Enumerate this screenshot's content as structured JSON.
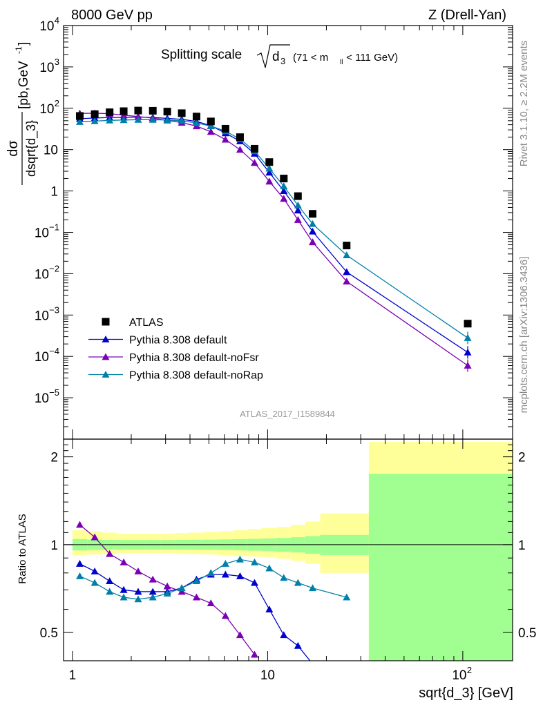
{
  "header": {
    "left": "8000 GeV pp",
    "right": "Z (Drell-Yan)"
  },
  "title": {
    "main": "Splitting scale",
    "sqrt_arg": "d",
    "sqrt_sub": "3",
    "range": "(71 < m",
    "range_sub": "ll",
    "range_end": " < 111 GeV)"
  },
  "ylabel": {
    "numerator": "dσ",
    "denominator": "dsqrt{d_3}",
    "units": "[pb,GeV",
    "units_sup": "-1",
    "units_end": "]"
  },
  "ratio_ylabel": "Ratio to ATLAS",
  "xlabel": "sqrt{d_3} [GeV]",
  "analysis_id": "ATLAS_2017_I1589844",
  "side_text_upper": "Rivet 3.1.10, ≥ 2.2M events",
  "side_text_lower": "mcplots.cern.ch [arXiv:1306.3436]",
  "colors": {
    "atlas": "#000000",
    "default": "#0000cc",
    "noFsr": "#7b00b4",
    "noRap": "#0080a8",
    "band_inner": "#a0ff90",
    "band_outer": "#ffff99"
  },
  "chart_data": {
    "type": "scatter",
    "x_scale": "log",
    "y_scale": "log",
    "xlim": [
      0.9,
      180
    ],
    "ylim": [
      1e-06,
      10000
    ],
    "x_ticks": [
      {
        "value": 1,
        "label": "1"
      },
      {
        "value": 10,
        "label": "10"
      },
      {
        "value": 100,
        "label": "10",
        "sup": "2"
      }
    ],
    "y_ticks": [
      {
        "value": 1e-05,
        "label": "10",
        "sup": "−5"
      },
      {
        "value": 0.0001,
        "label": "10",
        "sup": "−4"
      },
      {
        "value": 0.001,
        "label": "10",
        "sup": "−3"
      },
      {
        "value": 0.01,
        "label": "10",
        "sup": "−2"
      },
      {
        "value": 0.1,
        "label": "10",
        "sup": "−1"
      },
      {
        "value": 1,
        "label": "1",
        "sup": ""
      },
      {
        "value": 10,
        "label": "10",
        "sup": ""
      },
      {
        "value": 100,
        "label": "10",
        "sup": "2"
      },
      {
        "value": 1000,
        "label": "10",
        "sup": "3"
      },
      {
        "value": 10000,
        "label": "10",
        "sup": "4"
      }
    ],
    "legend": {
      "placement": "lower-left",
      "entries": [
        {
          "key": "atlas",
          "label": "ATLAS"
        },
        {
          "key": "default",
          "label": "Pythia 8.308 default"
        },
        {
          "key": "noFsr",
          "label": "Pythia 8.308 default-noFsr"
        },
        {
          "key": "noRap",
          "label": "Pythia 8.308 default-noRap"
        }
      ]
    },
    "atlas": {
      "x": [
        1.09,
        1.3,
        1.55,
        1.83,
        2.17,
        2.58,
        3.06,
        3.63,
        4.32,
        5.12,
        6.08,
        7.22,
        8.57,
        10.2,
        12.1,
        14.3,
        17.0,
        25.4,
        106
      ],
      "y": [
        65,
        72,
        80,
        85,
        88,
        87,
        83,
        76,
        63,
        48,
        32,
        20,
        10.5,
        5.0,
        2.0,
        0.75,
        0.28,
        0.048,
        0.00062
      ]
    },
    "series": [
      {
        "key": "default",
        "x": [
          1.09,
          1.3,
          1.55,
          1.83,
          2.17,
          2.58,
          3.06,
          3.63,
          4.32,
          5.12,
          6.08,
          7.22,
          8.57,
          10.2,
          12.1,
          14.3,
          17.0,
          25.4,
          106
        ],
        "y": [
          56,
          58,
          60,
          60,
          61,
          60,
          57,
          54,
          48,
          38,
          25,
          16,
          8.0,
          2.8,
          1.0,
          0.34,
          0.105,
          0.011,
          0.000125
        ]
      },
      {
        "key": "noFsr",
        "x": [
          1.09,
          1.3,
          1.55,
          1.83,
          2.17,
          2.58,
          3.06,
          3.63,
          4.32,
          5.12,
          6.08,
          7.22,
          8.57,
          10.2,
          12.1,
          14.3,
          17.0,
          25.4,
          106
        ],
        "y": [
          75,
          76,
          74,
          68,
          63,
          58,
          51,
          45,
          37,
          27,
          17.5,
          10,
          4.8,
          1.7,
          0.65,
          0.2,
          0.058,
          0.0065,
          6e-05
        ]
      },
      {
        "key": "noRap",
        "x": [
          1.09,
          1.3,
          1.55,
          1.83,
          2.17,
          2.58,
          3.06,
          3.63,
          4.32,
          5.12,
          6.08,
          7.22,
          8.57,
          10.2,
          12.1,
          14.3,
          17.0,
          25.4,
          106
        ],
        "y": [
          47,
          49,
          51,
          52,
          53,
          53,
          52,
          50,
          44,
          37,
          28,
          18,
          9.2,
          3.5,
          1.3,
          0.45,
          0.16,
          0.028,
          0.00028
        ]
      }
    ],
    "ratio": {
      "ylim": [
        0.4,
        2.3
      ],
      "y_ticks": [
        0.5,
        1,
        2
      ],
      "band_edges": [
        1.0,
        1.19,
        1.42,
        1.68,
        2.0,
        2.37,
        2.82,
        3.34,
        3.97,
        4.71,
        5.59,
        6.64,
        7.88,
        9.35,
        11.1,
        13.2,
        15.6,
        18.6,
        33.0,
        180
      ],
      "band_inner": [
        [
          0.955,
          1.045
        ],
        [
          0.96,
          1.04
        ],
        [
          0.962,
          1.038
        ],
        [
          0.963,
          1.037
        ],
        [
          0.963,
          1.037
        ],
        [
          0.963,
          1.037
        ],
        [
          0.963,
          1.037
        ],
        [
          0.962,
          1.038
        ],
        [
          0.961,
          1.039
        ],
        [
          0.96,
          1.04
        ],
        [
          0.958,
          1.042
        ],
        [
          0.956,
          1.044
        ],
        [
          0.953,
          1.047
        ],
        [
          0.95,
          1.05
        ],
        [
          0.946,
          1.054
        ],
        [
          0.94,
          1.06
        ],
        [
          0.93,
          1.07
        ],
        [
          0.92,
          1.08
        ],
        [
          0.4,
          1.75
        ]
      ],
      "band_outer": [
        [
          0.92,
          1.12
        ],
        [
          0.925,
          1.11
        ],
        [
          0.93,
          1.1
        ],
        [
          0.935,
          1.09
        ],
        [
          0.935,
          1.09
        ],
        [
          0.935,
          1.09
        ],
        [
          0.935,
          1.09
        ],
        [
          0.93,
          1.095
        ],
        [
          0.928,
          1.1
        ],
        [
          0.925,
          1.105
        ],
        [
          0.92,
          1.11
        ],
        [
          0.915,
          1.12
        ],
        [
          0.91,
          1.13
        ],
        [
          0.905,
          1.14
        ],
        [
          0.895,
          1.15
        ],
        [
          0.88,
          1.17
        ],
        [
          0.86,
          1.2
        ],
        [
          0.8,
          1.28
        ],
        [
          0.4,
          2.25
        ]
      ],
      "series": [
        {
          "key": "default",
          "x": [
            1.09,
            1.3,
            1.55,
            1.83,
            2.17,
            2.58,
            3.06,
            3.63,
            4.32,
            5.12,
            6.08,
            7.22,
            8.57,
            10.2,
            12.1,
            14.3,
            17.0
          ],
          "y": [
            0.86,
            0.81,
            0.75,
            0.7,
            0.69,
            0.69,
            0.69,
            0.71,
            0.76,
            0.79,
            0.79,
            0.78,
            0.74,
            0.6,
            0.49,
            0.45,
            0.39
          ]
        },
        {
          "key": "noFsr",
          "x": [
            1.09,
            1.3,
            1.55,
            1.83,
            2.17,
            2.58,
            3.06,
            3.63,
            4.32,
            5.12,
            6.08,
            7.22,
            8.57
          ],
          "y": [
            1.17,
            1.06,
            0.93,
            0.87,
            0.81,
            0.76,
            0.72,
            0.69,
            0.66,
            0.63,
            0.57,
            0.49,
            0.42
          ]
        },
        {
          "key": "noRap",
          "x": [
            1.09,
            1.3,
            1.55,
            1.83,
            2.17,
            2.58,
            3.06,
            3.63,
            4.32,
            5.12,
            6.08,
            7.22,
            8.57,
            10.2,
            12.1,
            14.3,
            17.0,
            25.4
          ],
          "y": [
            0.78,
            0.74,
            0.69,
            0.66,
            0.65,
            0.66,
            0.68,
            0.71,
            0.75,
            0.8,
            0.86,
            0.89,
            0.87,
            0.83,
            0.77,
            0.74,
            0.71,
            0.66
          ]
        }
      ]
    }
  }
}
